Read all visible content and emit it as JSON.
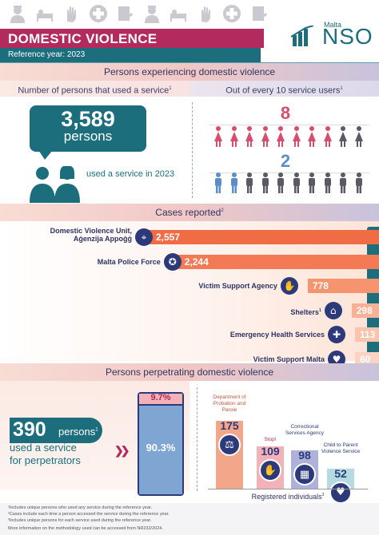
{
  "header": {
    "title": "DOMESTIC VIOLENCE",
    "reference": "Reference year: 2023",
    "logo_small": "Malta",
    "logo_big": "NSO"
  },
  "section1": {
    "title": "Persons experiencing domestic violence",
    "left_header": "Number of persons that used a service",
    "left_sup": "1",
    "right_header": "Out of every 10 service users",
    "right_sup": "1",
    "count": "3,589",
    "count_unit": "persons",
    "used_text": "used a service in 2023",
    "female_number": "8",
    "male_number": "2"
  },
  "cases": {
    "title": "Cases reported",
    "sup": "2",
    "rows": [
      {
        "label": "Domestic Violence Unit, Aġenzija Appoġġ",
        "value": "2,557",
        "icon": "network-icon",
        "fraction": 1.0
      },
      {
        "label": "Malta Police Force",
        "value": "2,244",
        "icon": "police-icon",
        "fraction": 0.878
      },
      {
        "label": "Victim Support Agency",
        "value": "778",
        "icon": "hand-icon",
        "fraction": 0.304
      },
      {
        "label": "Shelters",
        "sup": "1",
        "value": "298",
        "icon": "shelter-icon",
        "fraction": 0.117
      },
      {
        "label": "Emergency Health Services",
        "value": "113",
        "icon": "medical-cross-icon",
        "fraction": 0.044
      },
      {
        "label": "Victim Support Malta",
        "value": "60",
        "icon": "hand-heart-icon",
        "fraction": 0.023
      }
    ]
  },
  "section3": {
    "title": "Persons perpetrating domestic violence",
    "count": "390",
    "count_unit": "persons",
    "sup": "1",
    "line2": "used a service",
    "line3": "for perpetrators",
    "pct_top": "9.7%",
    "pct_bottom": "90.3%",
    "registered_label": "Registered individuals",
    "registered_sup": "3",
    "bars": [
      {
        "label": "Department of Probation and Parole",
        "value": "175",
        "color": "#f2a68a",
        "fraction": 1.0,
        "icon": "gavel-icon"
      },
      {
        "label": "Stop!",
        "value": "109",
        "color": "#f3b1b8",
        "fraction": 0.623,
        "icon": "stop-hand-icon"
      },
      {
        "label": "Correctional Services Agency",
        "value": "98",
        "color": "#aeb2d8",
        "fraction": 0.56,
        "icon": "prison-icon"
      },
      {
        "label": "Child to Parent Violence Service",
        "value": "52",
        "color": "#b4dbe0",
        "fraction": 0.297,
        "icon": "family-icon"
      }
    ]
  },
  "footnotes": [
    "¹Includes unique persons who used any service during the reference year.",
    "²Cases include each time a person accessed the service during the reference year.",
    "³Includes unique persons for each service used during the reference year.",
    "More information on the methodology used can be accessed from NR232/2024."
  ],
  "colors": {
    "magenta": "#b32a5e",
    "teal": "#1d6e7c",
    "navy": "#2c3a79",
    "orange": "#f06c45",
    "female": "#d84c6e",
    "male": "#5b8fc7",
    "grey": "#5a5a66"
  }
}
